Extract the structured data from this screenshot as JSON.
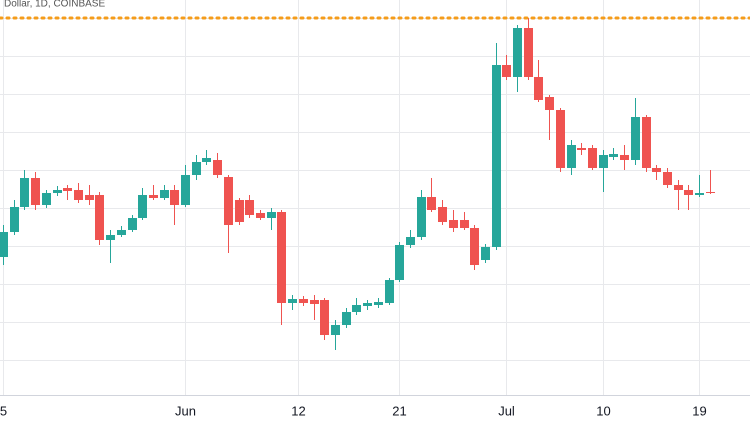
{
  "chart_data": {
    "type": "candlestick",
    "title": "Dollar, 1D, COINBASE",
    "up_color": "#26a69a",
    "down_color": "#ef5350",
    "open": [
      173,
      198,
      223,
      252,
      225,
      237,
      242,
      240,
      235,
      235,
      190,
      195,
      200,
      212,
      235,
      232,
      240,
      225,
      255,
      268,
      270,
      253,
      230,
      230,
      217,
      212,
      218,
      127,
      131,
      130,
      130,
      95,
      105,
      118,
      124,
      125,
      127,
      150,
      185,
      193,
      233,
      223,
      210,
      210,
      202,
      170,
      183,
      365,
      353,
      402,
      353,
      333,
      320,
      262,
      282,
      282,
      262,
      273,
      275,
      270,
      313,
      262,
      258,
      245,
      240,
      235,
      238
    ],
    "high": [
      205,
      230,
      260,
      258,
      240,
      244,
      245,
      247,
      245,
      238,
      200,
      204,
      215,
      242,
      245,
      245,
      245,
      265,
      275,
      280,
      277,
      255,
      232,
      235,
      220,
      222,
      220,
      135,
      134,
      135,
      132,
      110,
      122,
      132,
      130,
      132,
      152,
      188,
      200,
      240,
      252,
      230,
      220,
      218,
      205,
      186,
      387,
      375,
      405,
      412,
      370,
      335,
      322,
      290,
      287,
      285,
      280,
      282,
      285,
      332,
      315,
      265,
      262,
      250,
      245,
      255,
      260
    ],
    "low": [
      165,
      195,
      220,
      220,
      222,
      234,
      230,
      227,
      225,
      185,
      167,
      193,
      198,
      210,
      230,
      230,
      205,
      223,
      250,
      265,
      252,
      177,
      205,
      212,
      210,
      200,
      105,
      120,
      124,
      110,
      90,
      80,
      102,
      115,
      120,
      122,
      125,
      148,
      182,
      190,
      218,
      205,
      198,
      200,
      160,
      167,
      180,
      350,
      338,
      350,
      328,
      290,
      258,
      255,
      275,
      260,
      238,
      270,
      260,
      265,
      258,
      250,
      242,
      220,
      220,
      233,
      236
    ],
    "close": [
      198,
      223,
      252,
      225,
      237,
      240,
      239,
      230,
      230,
      190,
      195,
      200,
      212,
      235,
      232,
      240,
      225,
      255,
      268,
      272,
      255,
      205,
      208,
      215,
      212,
      218,
      127,
      131,
      127,
      126,
      95,
      105,
      118,
      125,
      127,
      128,
      150,
      185,
      193,
      233,
      220,
      208,
      202,
      202,
      165,
      183,
      365,
      353,
      402,
      353,
      330,
      320,
      262,
      285,
      280,
      262,
      275,
      276,
      270,
      313,
      262,
      258,
      245,
      240,
      235,
      237,
      237
    ],
    "xlim": [
      -0.28,
      69.75
    ],
    "ylim": [
      35,
      430
    ],
    "xticks": [
      {
        "value": 0,
        "label": "5"
      },
      {
        "value": 17,
        "label": "Jun"
      },
      {
        "value": 27.5,
        "label": "12"
      },
      {
        "value": 37,
        "label": "21"
      },
      {
        "value": 47,
        "label": "Jul"
      },
      {
        "value": 56,
        "label": "10"
      },
      {
        "value": 65,
        "label": "19"
      }
    ],
    "yticks": [
      70,
      108,
      146,
      184,
      222,
      260,
      298,
      336,
      374,
      412
    ],
    "hline": {
      "value": 412,
      "color": "#f59c1a"
    },
    "grid": true
  }
}
